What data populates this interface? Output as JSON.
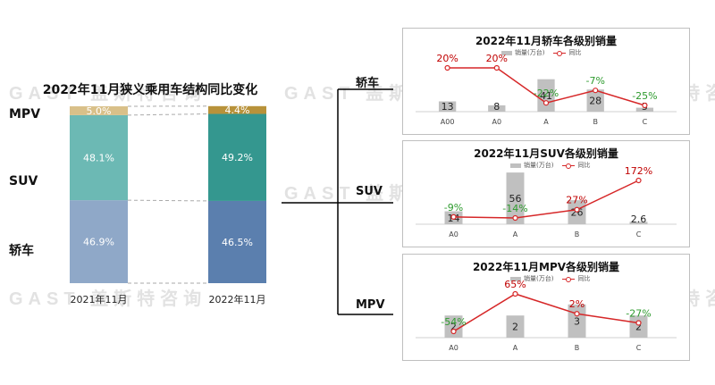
{
  "watermark": "GAST 盖斯特咨询",
  "chart_data": [
    {
      "type": "bar",
      "subtype": "stacked-100",
      "title": "2022年11月狭义乘用车结构同比变化",
      "categories": [
        "2021年11月",
        "2022年11月"
      ],
      "series": [
        {
          "name": "轿车",
          "values": [
            46.9,
            46.5
          ],
          "labels": [
            "46.9%",
            "46.5%"
          ],
          "colors": [
            "#8fa8c8",
            "#5b7fae"
          ]
        },
        {
          "name": "SUV",
          "values": [
            48.1,
            49.2
          ],
          "labels": [
            "48.1%",
            "49.2%"
          ],
          "colors": [
            "#6cb9b4",
            "#34978f"
          ]
        },
        {
          "name": "MPV",
          "values": [
            5.0,
            4.4
          ],
          "labels": [
            "5.0%",
            "4.4%"
          ],
          "colors": [
            "#d9c089",
            "#b8923a"
          ]
        }
      ],
      "ylim": [
        0,
        100
      ]
    },
    {
      "type": "bar",
      "subtype": "bar+line",
      "title": "2022年11月轿车各级别销量",
      "row_label": "轿车",
      "legend": [
        "销量(万台)",
        "同比"
      ],
      "categories": [
        "A00",
        "A0",
        "A",
        "B",
        "C"
      ],
      "series": [
        {
          "name": "销量(万台)",
          "values": [
            13,
            8,
            41,
            28,
            5
          ],
          "labels": [
            "13",
            "8",
            "41",
            "28",
            "5"
          ]
        },
        {
          "name": "同比",
          "values": [
            20,
            20,
            -22,
            -7,
            -25
          ],
          "labels": [
            "20%",
            "20%",
            "-22%",
            "-7%",
            "-25%"
          ]
        }
      ],
      "bar_max": 70
    },
    {
      "type": "bar",
      "subtype": "bar+line",
      "title": "2022年11月SUV各级别销量",
      "row_label": "SUV",
      "legend": [
        "销量(万台)",
        "同比"
      ],
      "categories": [
        "A0",
        "A",
        "B",
        "C"
      ],
      "series": [
        {
          "name": "销量(万台)",
          "values": [
            14,
            56,
            26,
            2.6
          ],
          "labels": [
            "14",
            "56",
            "26",
            "2.6"
          ]
        },
        {
          "name": "同比",
          "values": [
            -9,
            -14,
            27,
            172
          ],
          "labels": [
            "-9%",
            "-14%",
            "27%",
            "172%"
          ]
        }
      ],
      "bar_max": 60
    },
    {
      "type": "bar",
      "subtype": "bar+line",
      "title": "2022年11月MPV各级别销量",
      "row_label": "MPV",
      "legend": [
        "销量(万台)",
        "同比"
      ],
      "categories": [
        "A0",
        "A",
        "B",
        "C"
      ],
      "series": [
        {
          "name": "销量(万台)",
          "values": [
            2,
            2,
            3,
            2
          ],
          "labels": [
            "2",
            "2",
            "3",
            "2"
          ]
        },
        {
          "name": "同比",
          "values": [
            -54,
            65,
            2,
            -27
          ],
          "labels": [
            "-54%",
            "65%",
            "2%",
            "-27%"
          ]
        }
      ],
      "bar_max": 5
    }
  ],
  "colors": {
    "bar_gray": "#c0c0c0",
    "line_red": "#d62728",
    "pos_text": "#c00000",
    "neg_text": "#2e9b2e"
  }
}
